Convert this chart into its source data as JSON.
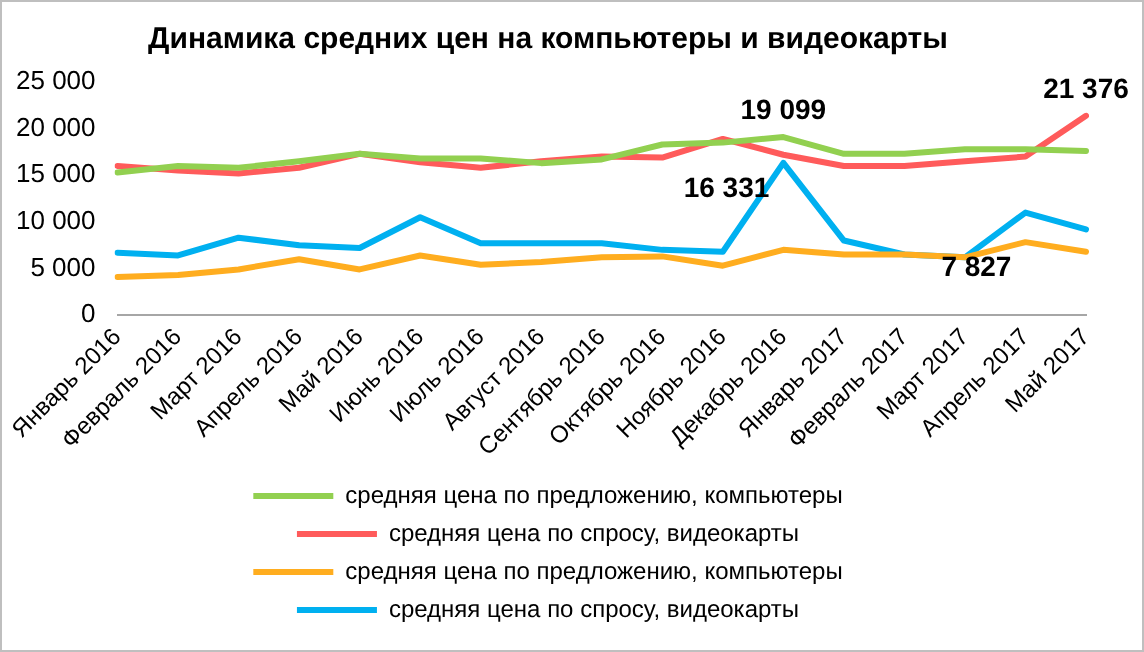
{
  "chart_data": {
    "type": "line",
    "title": "Динамика средних цен на компьютеры и видеокарты",
    "categories": [
      "Январь 2016",
      "Февраль 2016",
      "Март 2016",
      "Апрель 2016",
      "Май 2016",
      "Июнь 2016",
      "Июль 2016",
      "Август 2016",
      "Сентябрь 2016",
      "Октябрь 2016",
      "Ноябрь 2016",
      "Декабрь 2016",
      "Январь 2017",
      "Февраль 2017",
      "Март 2017",
      "Апрель 2017",
      "Май 2017"
    ],
    "series": [
      {
        "name": "средняя цена по предложению, компьютеры",
        "color": "#92d050",
        "values": [
          15300,
          16000,
          15800,
          16500,
          17300,
          16800,
          16800,
          16300,
          16700,
          18300,
          18500,
          19099,
          17300,
          17300,
          17800,
          17800,
          17600
        ],
        "value_labels": [
          null,
          null,
          null,
          null,
          null,
          null,
          null,
          null,
          null,
          null,
          null,
          "19 099",
          null,
          null,
          null,
          null,
          null
        ]
      },
      {
        "name": "средняя цена по спросу, видеокарты",
        "color": "#ff5b5b",
        "values": [
          16000,
          15500,
          15200,
          15800,
          17300,
          16400,
          15800,
          16500,
          17000,
          16900,
          18900,
          17200,
          16000,
          16000,
          16500,
          17000,
          21376
        ],
        "value_labels": [
          null,
          null,
          null,
          null,
          null,
          null,
          null,
          null,
          null,
          null,
          null,
          null,
          null,
          null,
          null,
          null,
          "21 376"
        ]
      },
      {
        "name": "средняя цена по предложению, компьютеры",
        "color": "#ffad1f",
        "values": [
          4100,
          4300,
          4900,
          6000,
          4900,
          6400,
          5400,
          5700,
          6200,
          6300,
          5300,
          7000,
          6500,
          6500,
          6200,
          7827,
          6800
        ],
        "value_labels": [
          null,
          null,
          null,
          null,
          null,
          null,
          null,
          null,
          null,
          null,
          null,
          null,
          null,
          null,
          null,
          "7 827",
          null
        ]
      },
      {
        "name": "средняя цена по спросу, видеокарты",
        "color": "#00b0f0",
        "values": [
          6700,
          6400,
          8300,
          7500,
          7200,
          10500,
          7700,
          7700,
          7700,
          7000,
          6800,
          16331,
          8000,
          6500,
          6200,
          11000,
          9200
        ],
        "value_labels": [
          null,
          null,
          null,
          null,
          null,
          null,
          null,
          null,
          null,
          null,
          null,
          "16 331",
          null,
          null,
          null,
          null,
          null
        ]
      }
    ],
    "ylim": [
      0,
      25000
    ],
    "yticks": [
      0,
      {
        "value": 5000,
        "label": "5 000"
      },
      {
        "value": 10000,
        "label": "10 000"
      },
      {
        "value": 15000,
        "label": "15 000"
      },
      {
        "value": 20000,
        "label": "20 000"
      },
      {
        "value": 25000,
        "label": "25 000"
      }
    ],
    "grid": false,
    "legend": "bottom",
    "marker": "none",
    "line_style": "solid"
  }
}
